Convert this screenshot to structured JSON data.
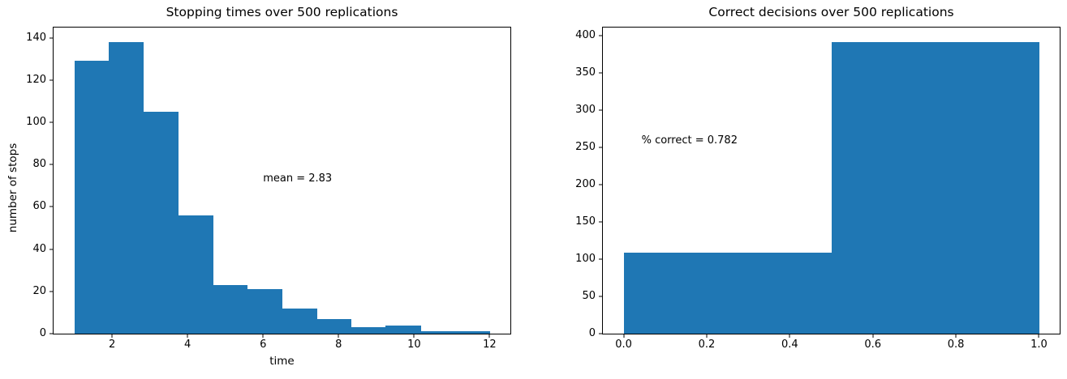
{
  "figure": {
    "background_color": "#ffffff",
    "bar_color": "#1f77b4",
    "axis_color": "#000000",
    "text_color": "#000000"
  },
  "chart_data": [
    {
      "type": "bar",
      "subtype": "histogram",
      "title": "Stopping times over 500 replications",
      "xlabel": "time",
      "ylabel": "number of stops",
      "bin_edges": [
        1.0,
        1.9167,
        2.8333,
        3.75,
        4.6667,
        5.5833,
        6.5,
        7.4167,
        8.3333,
        9.25,
        10.1667,
        11.0833,
        12.0
      ],
      "counts": [
        129,
        138,
        105,
        56,
        23,
        21,
        12,
        7,
        3,
        4,
        1,
        1
      ],
      "xlim": [
        0.45,
        12.55
      ],
      "ylim": [
        0,
        144.9
      ],
      "xtick_values": [
        2,
        4,
        6,
        8,
        10,
        12
      ],
      "xtick_labels": [
        "2",
        "4",
        "6",
        "8",
        "10",
        "12"
      ],
      "ytick_values": [
        0,
        20,
        40,
        60,
        80,
        100,
        120,
        140
      ],
      "ytick_labels": [
        "0",
        "20",
        "40",
        "60",
        "80",
        "100",
        "120",
        "140"
      ],
      "annotation": {
        "text": "mean = 2.83",
        "x": 6.0,
        "y": 70
      },
      "grid": false,
      "legend": null
    },
    {
      "type": "bar",
      "subtype": "histogram",
      "title": "Correct decisions over 500 replications",
      "xlabel": "",
      "ylabel": "",
      "bin_edges": [
        0.0,
        0.5,
        1.0
      ],
      "counts": [
        109,
        391
      ],
      "xlim": [
        -0.05,
        1.05
      ],
      "ylim": [
        0,
        410.55
      ],
      "xtick_values": [
        0.0,
        0.2,
        0.4,
        0.6,
        0.8,
        1.0
      ],
      "xtick_labels": [
        "0.0",
        "0.2",
        "0.4",
        "0.6",
        "0.8",
        "1.0"
      ],
      "ytick_values": [
        0,
        50,
        100,
        150,
        200,
        250,
        300,
        350,
        400
      ],
      "ytick_labels": [
        "0",
        "50",
        "100",
        "150",
        "200",
        "250",
        "300",
        "350",
        "400"
      ],
      "annotation": {
        "text": "% correct = 0.782",
        "x": 0.043,
        "y": 250
      },
      "grid": false,
      "legend": null
    }
  ]
}
